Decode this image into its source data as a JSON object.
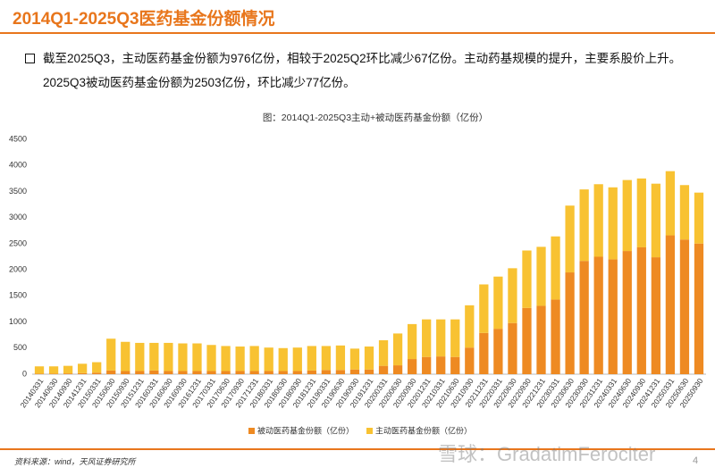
{
  "header": {
    "title": "2014Q1-2025Q3医药基金份额情况",
    "bullet": "截至2025Q3，主动医药基金份额为976亿份，相较于2025Q2环比减少67亿份。主动药基规模的提升，主要系股价上升。2025Q3被动医药基金份额为2503亿份，环比减少77亿份。",
    "source": "资料来源：wind，天风证券研究所",
    "watermark": "雪球：GradatimFerociter",
    "page": "4"
  },
  "chart_data": {
    "type": "bar",
    "stacked": true,
    "title": "图：2014Q1-2025Q3主动+被动医药基金份额（亿份）",
    "categories": [
      "20140331",
      "20140630",
      "20140930",
      "20141231",
      "20150331",
      "20150630",
      "20150930",
      "20151231",
      "20160331",
      "20160630",
      "20160930",
      "20161231",
      "20170331",
      "20170630",
      "20170930",
      "20171231",
      "20180331",
      "20180630",
      "20180930",
      "20181231",
      "20190331",
      "20190630",
      "20190930",
      "20191231",
      "20200331",
      "20200630",
      "20200930",
      "20201231",
      "20210331",
      "20210630",
      "20210930",
      "20211231",
      "20220331",
      "20220630",
      "20220930",
      "20221231",
      "20230331",
      "20230630",
      "20230930",
      "20231231",
      "20240331",
      "20240630",
      "20240930",
      "20241231",
      "20250331",
      "20250630",
      "20250930"
    ],
    "series": [
      {
        "name": "被动医药基金份额（亿份）",
        "color": "#ee8a22",
        "values": [
          10,
          10,
          15,
          20,
          30,
          70,
          60,
          60,
          70,
          60,
          60,
          60,
          60,
          60,
          60,
          60,
          60,
          60,
          60,
          70,
          80,
          80,
          90,
          90,
          160,
          170,
          290,
          330,
          340,
          330,
          510,
          790,
          870,
          980,
          1270,
          1310,
          1430,
          1950,
          2170,
          2250,
          2200,
          2360,
          2430,
          2240,
          2660,
          2580,
          2503
        ]
      },
      {
        "name": "主动医药基金份额（亿份）",
        "color": "#f8c232",
        "values": [
          140,
          140,
          145,
          180,
          200,
          610,
          560,
          540,
          530,
          540,
          530,
          530,
          500,
          480,
          470,
          480,
          450,
          440,
          450,
          470,
          460,
          470,
          400,
          440,
          490,
          610,
          670,
          720,
          710,
          720,
          810,
          930,
          1000,
          1050,
          1100,
          1130,
          1210,
          1280,
          1370,
          1390,
          1380,
          1360,
          1320,
          1410,
          1230,
          1043,
          976
        ]
      }
    ],
    "ylim": [
      0,
      4500
    ],
    "yticks": [
      0,
      500,
      1000,
      1500,
      2000,
      2500,
      3000,
      3500,
      4000,
      4500
    ],
    "grid": false,
    "legend": "bottom"
  }
}
